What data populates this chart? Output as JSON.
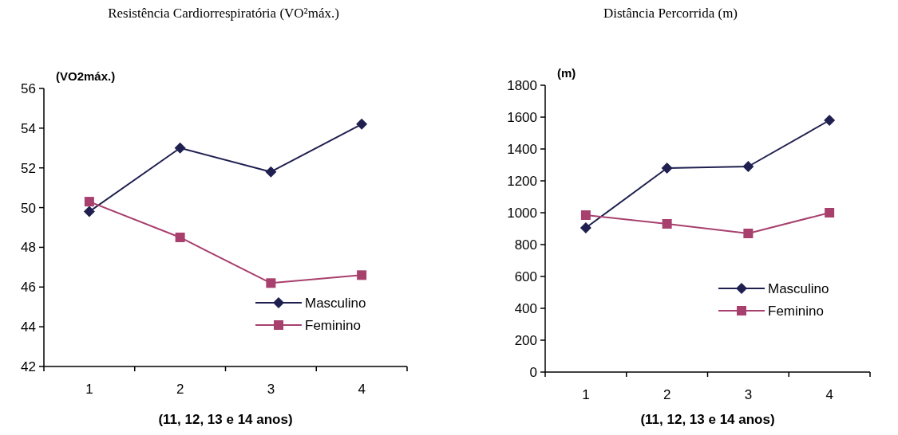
{
  "chart_data": [
    {
      "type": "line",
      "title": "Resistência Cardiorrespiratória  (VO²máx.)",
      "ylabel": "(VO2máx.)",
      "xlabel": "(11, 12, 13 e 14 anos)",
      "categories": [
        "1",
        "2",
        "3",
        "4"
      ],
      "ylim": [
        42,
        56
      ],
      "yticks": [
        42,
        44,
        46,
        48,
        50,
        52,
        54,
        56
      ],
      "legend": "bottom right",
      "series": [
        {
          "name": "Masculino",
          "color": "#1f2050",
          "marker": "diamond",
          "values": [
            49.8,
            53.0,
            51.8,
            54.2
          ]
        },
        {
          "name": "Feminino",
          "color": "#a8406e",
          "marker": "square",
          "values": [
            50.3,
            48.5,
            46.2,
            46.6
          ]
        }
      ]
    },
    {
      "type": "line",
      "title": "Distância Percorrida (m)",
      "ylabel": "(m)",
      "xlabel": "(11, 12, 13 e 14 anos)",
      "categories": [
        "1",
        "2",
        "3",
        "4"
      ],
      "ylim": [
        0,
        1800
      ],
      "yticks": [
        0,
        200,
        400,
        600,
        800,
        1000,
        1200,
        1400,
        1600,
        1800
      ],
      "legend": "bottom right",
      "series": [
        {
          "name": "Masculino",
          "color": "#1f2050",
          "marker": "diamond",
          "values": [
            905,
            1280,
            1290,
            1580
          ]
        },
        {
          "name": "Feminino",
          "color": "#a8406e",
          "marker": "square",
          "values": [
            985,
            930,
            870,
            1000
          ]
        }
      ]
    }
  ]
}
